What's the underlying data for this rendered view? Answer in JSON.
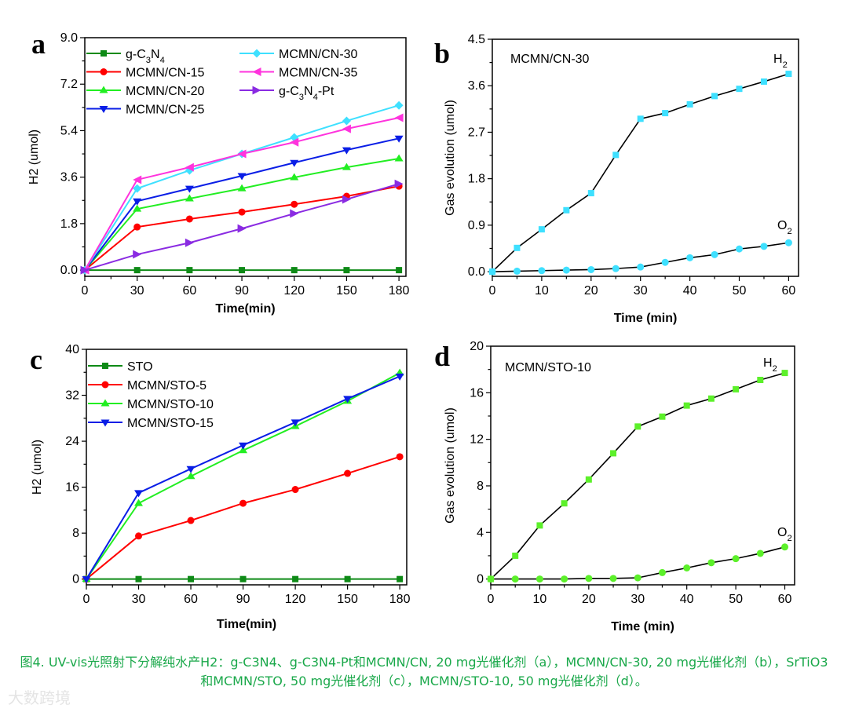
{
  "chart_data": [
    {
      "panel": "a",
      "type": "line",
      "title": "",
      "xlabel": "Time(min)",
      "ylabel": "H2 (umol)",
      "xlim": [
        0,
        180
      ],
      "ylim": [
        0,
        9.0
      ],
      "xticks": [
        "0",
        "30",
        "60",
        "90",
        "120",
        "150",
        "180"
      ],
      "yticks": [
        "0.0",
        "1.8",
        "3.6",
        "5.4",
        "7.2",
        "9.0"
      ],
      "legend": "top-left",
      "x": [
        0,
        30,
        60,
        90,
        120,
        150,
        180
      ],
      "series": [
        {
          "name": "g-C3N4",
          "sub": true,
          "color": "#0e8a16",
          "marker": "square",
          "values": [
            0,
            0,
            0,
            0,
            0,
            0,
            0
          ]
        },
        {
          "name": "MCMN/CN-15",
          "color": "#ff0000",
          "marker": "circle",
          "values": [
            0,
            1.67,
            1.98,
            2.25,
            2.55,
            2.86,
            3.25
          ]
        },
        {
          "name": "MCMN/CN-20",
          "color": "#22ee22",
          "marker": "triangle-up",
          "values": [
            0,
            2.37,
            2.77,
            3.16,
            3.59,
            3.98,
            4.32
          ]
        },
        {
          "name": "MCMN/CN-25",
          "color": "#0a1ee6",
          "marker": "triangle-down",
          "values": [
            0,
            2.67,
            3.16,
            3.65,
            4.16,
            4.65,
            5.1
          ]
        },
        {
          "name": "MCMN/CN-30",
          "color": "#3ee0ff",
          "marker": "diamond",
          "values": [
            0,
            3.16,
            3.86,
            4.5,
            5.14,
            5.78,
            6.38
          ]
        },
        {
          "name": "MCMN/CN-35",
          "color": "#ff33dd",
          "marker": "triangle-left",
          "values": [
            0,
            3.5,
            3.98,
            4.5,
            4.95,
            5.47,
            5.9
          ]
        },
        {
          "name": "g-C3N4-Pt",
          "sub": true,
          "color": "#8a2be2",
          "marker": "triangle-right",
          "values": [
            0,
            0.61,
            1.06,
            1.61,
            2.19,
            2.74,
            3.34
          ]
        }
      ]
    },
    {
      "panel": "b",
      "type": "line",
      "title": "MCMN/CN-30",
      "xlabel": "Time (min)",
      "ylabel": "Gas evolution (umol)",
      "xlim": [
        0,
        60
      ],
      "ylim": [
        0,
        4.5
      ],
      "xticks": [
        "0",
        "10",
        "20",
        "30",
        "40",
        "50",
        "60"
      ],
      "yticks": [
        "0.0",
        "0.9",
        "1.8",
        "2.7",
        "3.6",
        "4.5"
      ],
      "x": [
        0,
        5,
        10,
        15,
        20,
        25,
        30,
        35,
        40,
        45,
        50,
        55,
        60
      ],
      "series": [
        {
          "name": "H2",
          "color": "#3ee0ff",
          "marker": "square",
          "values": [
            0,
            0.46,
            0.82,
            1.19,
            1.52,
            2.26,
            2.96,
            3.07,
            3.24,
            3.4,
            3.54,
            3.68,
            3.83
          ]
        },
        {
          "name": "O2",
          "color": "#3ee0ff",
          "marker": "circle",
          "values": [
            0,
            0.01,
            0.02,
            0.03,
            0.04,
            0.06,
            0.09,
            0.18,
            0.27,
            0.33,
            0.44,
            0.49,
            0.56
          ]
        }
      ]
    },
    {
      "panel": "c",
      "type": "line",
      "title": "",
      "xlabel": "Time(min)",
      "ylabel": "H2 (umol)",
      "xlim": [
        0,
        180
      ],
      "ylim": [
        0,
        40
      ],
      "xticks": [
        "0",
        "30",
        "60",
        "90",
        "120",
        "150",
        "180"
      ],
      "yticks": [
        "0",
        "8",
        "16",
        "24",
        "32",
        "40"
      ],
      "legend": "top-left",
      "x": [
        0,
        30,
        60,
        90,
        120,
        150,
        180
      ],
      "series": [
        {
          "name": "STO",
          "color": "#0e8a16",
          "marker": "square",
          "values": [
            0,
            0,
            0,
            0,
            0,
            0,
            0
          ]
        },
        {
          "name": "MCMN/STO-5",
          "color": "#ff0000",
          "marker": "circle",
          "values": [
            0,
            7.5,
            10.2,
            13.2,
            15.6,
            18.4,
            21.3
          ]
        },
        {
          "name": "MCMN/STO-10",
          "color": "#22ee22",
          "marker": "triangle-up",
          "values": [
            0,
            13.2,
            17.9,
            22.4,
            26.6,
            31.0,
            35.9
          ]
        },
        {
          "name": "MCMN/STO-15",
          "color": "#0a1ee6",
          "marker": "triangle-down",
          "values": [
            0,
            15.0,
            19.2,
            23.3,
            27.3,
            31.4,
            35.3
          ]
        }
      ]
    },
    {
      "panel": "d",
      "type": "line",
      "title": "MCMN/STO-10",
      "xlabel": "Time (min)",
      "ylabel": "Gas evolution (umol)",
      "xlim": [
        0,
        60
      ],
      "ylim": [
        0,
        20
      ],
      "xticks": [
        "0",
        "10",
        "20",
        "30",
        "40",
        "50",
        "60"
      ],
      "yticks": [
        "0",
        "4",
        "8",
        "12",
        "16",
        "20"
      ],
      "x": [
        0,
        5,
        10,
        15,
        20,
        25,
        30,
        35,
        40,
        45,
        50,
        55,
        60
      ],
      "series": [
        {
          "name": "H2",
          "color": "#5cf02a",
          "marker": "square",
          "values": [
            0,
            2.0,
            4.6,
            6.5,
            8.55,
            10.8,
            13.1,
            13.95,
            14.9,
            15.5,
            16.3,
            17.1,
            17.7
          ]
        },
        {
          "name": "O2",
          "color": "#5cf02a",
          "marker": "circle",
          "values": [
            0,
            0,
            0,
            0,
            0.05,
            0.05,
            0.1,
            0.55,
            0.95,
            1.4,
            1.75,
            2.2,
            2.75
          ]
        }
      ]
    }
  ],
  "caption": "图4. UV-vis光照射下分解纯水产H2：g-C3N4、g-C3N4-Pt和MCMN/CN, 20 mg光催化剂（a），MCMN/CN-30, 20 mg光催化剂（b），SrTiO3和MCMN/STO, 50 mg光催化剂（c），MCMN/STO-10, 50 mg光催化剂（d）。",
  "watermark": "大数跨境"
}
